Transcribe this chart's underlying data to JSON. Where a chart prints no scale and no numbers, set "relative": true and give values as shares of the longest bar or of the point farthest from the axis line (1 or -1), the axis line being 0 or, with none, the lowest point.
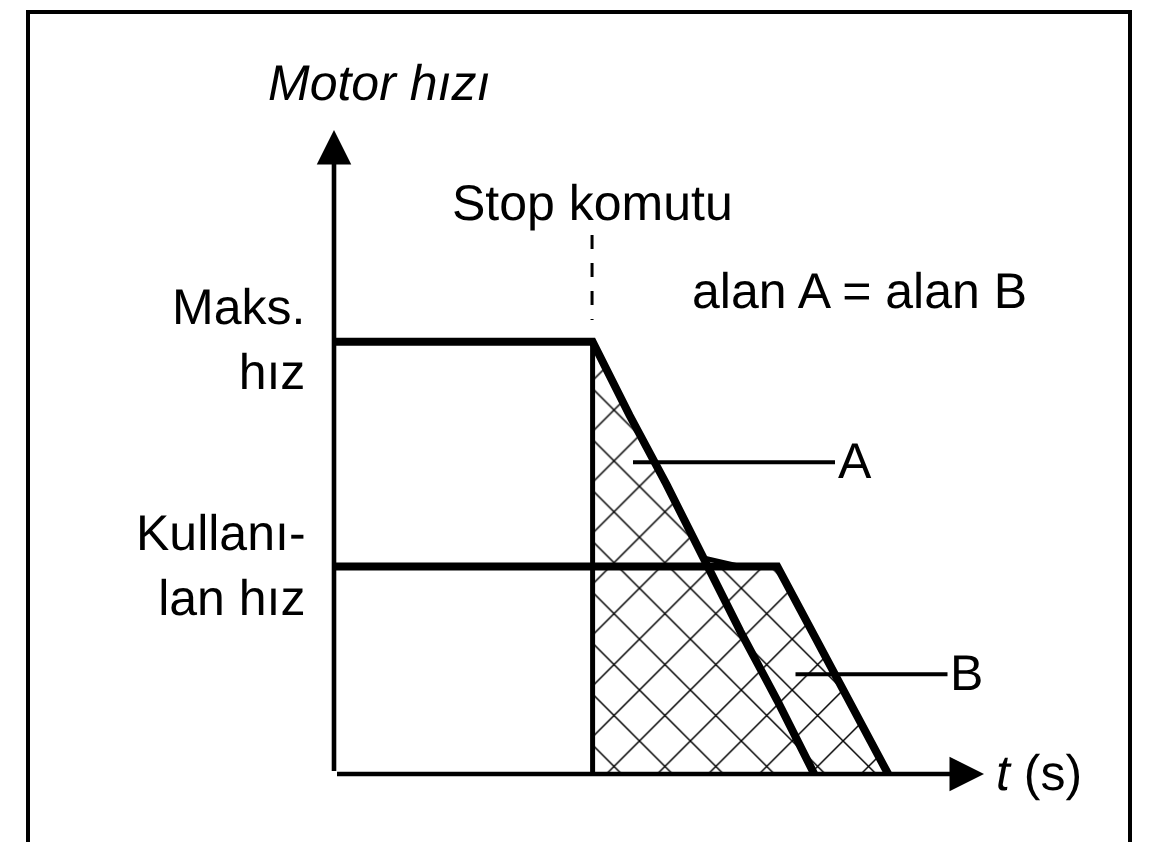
{
  "chart_data": {
    "type": "line",
    "relative": true,
    "ylabel": "Motor hızı",
    "xlabel": "t (s)",
    "categories": [
      null,
      null,
      null,
      null,
      null,
      null,
      null,
      null,
      null,
      null,
      null,
      null,
      null,
      null,
      null,
      null
    ],
    "series": [
      {
        "name": "Maks.\nhız",
        "color": "#000000",
        "values": [
          1,
          1,
          1,
          1,
          1,
          1,
          1,
          1,
          0.83,
          0.67,
          0.5,
          0.33,
          0.17,
          0,
          null,
          null
        ]
      },
      {
        "name": "Kullanı-\nlan hız",
        "color": "#000000",
        "values": [
          0.48,
          0.48,
          0.48,
          0.48,
          0.48,
          0.48,
          0.48,
          0.48,
          0.48,
          0.48,
          0.48,
          0.48,
          0.48,
          0.32,
          0.16,
          0
        ]
      },
      {
        "type": "area",
        "color": "#000000",
        "values": [
          null,
          null,
          null,
          null,
          null,
          null,
          null,
          1,
          0.83,
          0.67,
          0.5,
          0.48,
          0.48,
          0.32,
          0.16,
          0
        ]
      }
    ],
    "annotations": [
      "Stop komutu",
      "alan A = alan B",
      "A",
      "B"
    ]
  }
}
